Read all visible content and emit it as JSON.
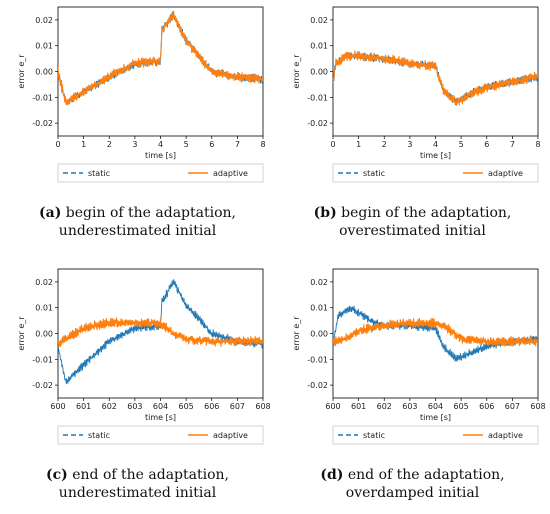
{
  "colors": {
    "static": "#1f77b4",
    "adaptive": "#ff7f0e"
  },
  "chart_data": [
    {
      "type": "line",
      "panel_letter": "(a)",
      "caption": "begin of the adaptation, underestimated initial",
      "xlabel": "time [s]",
      "ylabel": "error e_r",
      "xlim": [
        0,
        8
      ],
      "ylim": [
        -0.025,
        0.025
      ],
      "xticks": [
        "0",
        "1",
        "2",
        "3",
        "4",
        "5",
        "6",
        "7",
        "8"
      ],
      "yticks": [
        "-0.02",
        "-0.01",
        "0.00",
        "0.01",
        "0.02"
      ],
      "legend": [
        "static",
        "adaptive"
      ],
      "series": [
        {
          "name": "static",
          "x": [
            0,
            0.3,
            1,
            2,
            3,
            4,
            4.05,
            4.5,
            5,
            6,
            7,
            8
          ],
          "values": [
            0,
            -0.012,
            -0.008,
            -0.002,
            0.003,
            0.004,
            0.016,
            0.022,
            0.012,
            0.0,
            -0.002,
            -0.003
          ]
        },
        {
          "name": "adaptive",
          "x": [
            0,
            0.3,
            1,
            2,
            3,
            4,
            4.05,
            4.5,
            5,
            6,
            7,
            8
          ],
          "values": [
            0,
            -0.012,
            -0.008,
            -0.002,
            0.003,
            0.004,
            0.016,
            0.022,
            0.012,
            0.0,
            -0.002,
            -0.003
          ]
        }
      ]
    },
    {
      "type": "line",
      "panel_letter": "(b)",
      "caption": "begin of the adaptation, overestimated initial",
      "xlabel": "time [s]",
      "ylabel": "error e_r",
      "xlim": [
        0,
        8
      ],
      "ylim": [
        -0.025,
        0.025
      ],
      "xticks": [
        "0",
        "1",
        "2",
        "3",
        "4",
        "5",
        "6",
        "7",
        "8"
      ],
      "yticks": [
        "-0.02",
        "-0.01",
        "0.00",
        "0.01",
        "0.02"
      ],
      "legend": [
        "static",
        "adaptive"
      ],
      "series": [
        {
          "name": "static",
          "x": [
            0,
            0.1,
            0.5,
            1,
            2,
            3,
            4,
            4.3,
            4.8,
            5.5,
            6,
            7,
            8
          ],
          "values": [
            -0.005,
            0.003,
            0.006,
            0.006,
            0.005,
            0.003,
            0.002,
            -0.007,
            -0.012,
            -0.008,
            -0.006,
            -0.004,
            -0.002
          ]
        },
        {
          "name": "adaptive",
          "x": [
            0,
            0.1,
            0.5,
            1,
            2,
            3,
            4,
            4.3,
            4.8,
            5.5,
            6,
            7,
            8
          ],
          "values": [
            -0.005,
            0.003,
            0.006,
            0.006,
            0.005,
            0.003,
            0.002,
            -0.007,
            -0.012,
            -0.008,
            -0.006,
            -0.004,
            -0.002
          ]
        }
      ]
    },
    {
      "type": "line",
      "panel_letter": "(c)",
      "caption": "end of the adaptation, underestimated initial",
      "xlabel": "time [s]",
      "ylabel": "error e_r",
      "xlim": [
        600,
        608
      ],
      "ylim": [
        -0.025,
        0.025
      ],
      "xticks": [
        "600",
        "601",
        "602",
        "603",
        "604",
        "605",
        "606",
        "607",
        "608"
      ],
      "yticks": [
        "-0.02",
        "-0.01",
        "0.00",
        "0.01",
        "0.02"
      ],
      "legend": [
        "static",
        "adaptive"
      ],
      "series": [
        {
          "name": "static",
          "x": [
            600,
            600.3,
            601,
            602,
            603,
            604,
            604.05,
            604.5,
            605,
            606,
            607,
            608
          ],
          "values": [
            -0.005,
            -0.019,
            -0.012,
            -0.003,
            0.002,
            0.003,
            0.012,
            0.02,
            0.011,
            0.0,
            -0.003,
            -0.004
          ]
        },
        {
          "name": "adaptive",
          "x": [
            600,
            600.5,
            601,
            602,
            603,
            604,
            604.5,
            605,
            606,
            607,
            608
          ],
          "values": [
            -0.004,
            -0.001,
            0.002,
            0.004,
            0.004,
            0.004,
            0.0,
            -0.002,
            -0.003,
            -0.003,
            -0.003
          ]
        }
      ]
    },
    {
      "type": "line",
      "panel_letter": "(d)",
      "caption": "end of the adaptation, overdamped initial",
      "xlabel": "time [s]",
      "ylabel": "error e_r",
      "xlim": [
        600,
        608
      ],
      "ylim": [
        -0.025,
        0.025
      ],
      "xticks": [
        "600",
        "601",
        "602",
        "603",
        "604",
        "605",
        "606",
        "607",
        "608"
      ],
      "yticks": [
        "-0.02",
        "-0.01",
        "0.00",
        "0.01",
        "0.02"
      ],
      "legend": [
        "static",
        "adaptive"
      ],
      "series": [
        {
          "name": "static",
          "x": [
            600,
            600.2,
            600.7,
            601.5,
            602,
            603,
            604,
            604.3,
            604.8,
            605.5,
            606,
            607,
            608
          ],
          "values": [
            -0.004,
            0.007,
            0.01,
            0.005,
            0.003,
            0.003,
            0.002,
            -0.005,
            -0.01,
            -0.007,
            -0.005,
            -0.003,
            -0.002
          ]
        },
        {
          "name": "adaptive",
          "x": [
            600,
            600.5,
            601,
            602,
            603,
            604,
            604.5,
            605,
            606,
            607,
            608
          ],
          "values": [
            -0.003,
            -0.002,
            0.001,
            0.003,
            0.004,
            0.004,
            0.002,
            -0.002,
            -0.003,
            -0.003,
            -0.003
          ]
        }
      ]
    }
  ]
}
